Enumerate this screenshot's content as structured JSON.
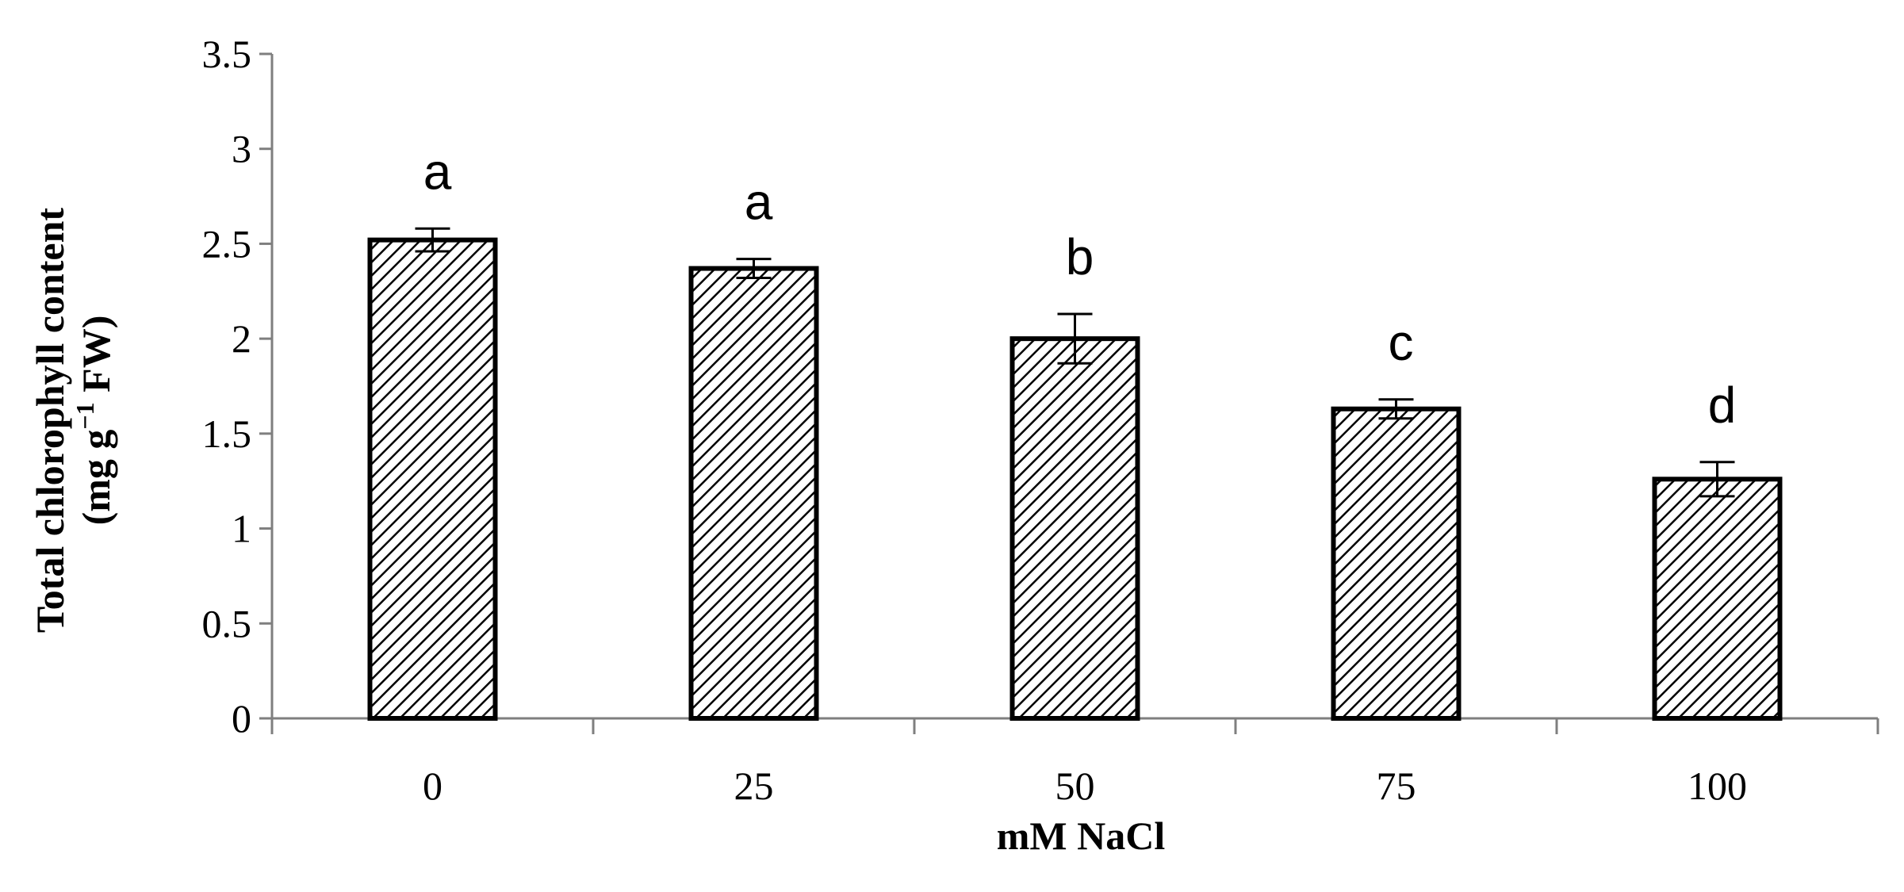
{
  "chart_data": {
    "type": "bar",
    "categories": [
      "0",
      "25",
      "50",
      "75",
      "100"
    ],
    "values": [
      2.52,
      2.37,
      2.0,
      1.63,
      1.26
    ],
    "errors": [
      0.06,
      0.05,
      0.13,
      0.05,
      0.09
    ],
    "significance_letters": [
      "a",
      "a",
      "b",
      "c",
      "d"
    ],
    "xlabel": "mM NaCl",
    "ylabel": {
      "line1": "Total chlorophyll content",
      "line2_prefix": "(mg g",
      "line2_superscript": "−1",
      "line2_suffix": " FW)"
    },
    "ylim": [
      0,
      3.5
    ],
    "yticks": [
      "0",
      "0.5",
      "1",
      "1.5",
      "2",
      "2.5",
      "3",
      "3.5"
    ],
    "grid": false,
    "legend": "none",
    "bar_fill": "diagonal-hatch",
    "colors": {
      "bar_stroke": "#000000",
      "hatch": "#000000",
      "axis": "#7f7f7f",
      "background": "#ffffff"
    }
  }
}
